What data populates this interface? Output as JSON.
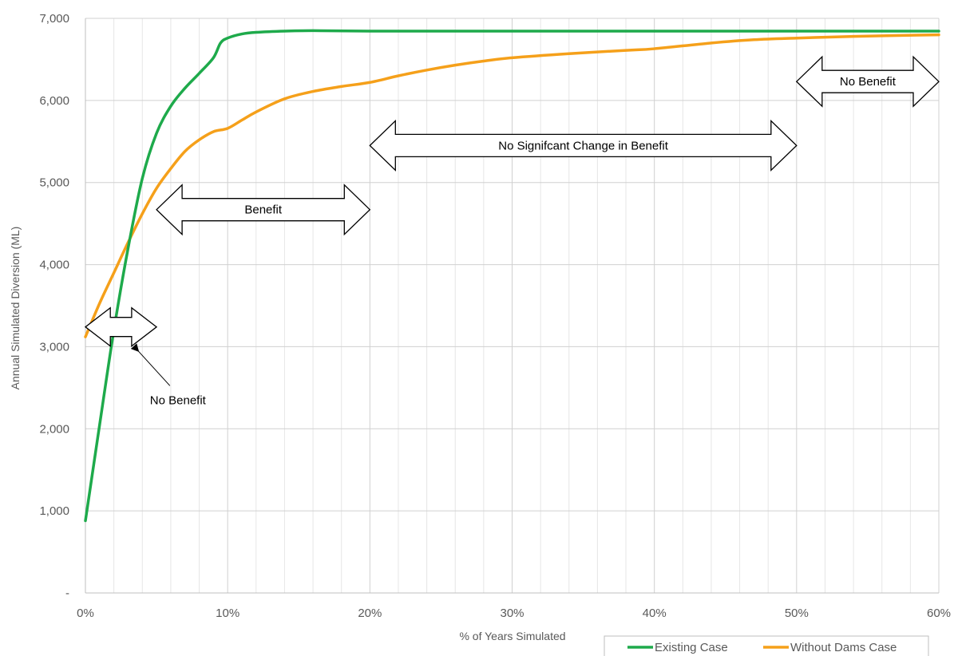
{
  "chart_data": {
    "type": "line",
    "title": "",
    "xlabel": "% of Years Simulated",
    "ylabel": "Annual Simulated Diversion (ML)",
    "xlim": [
      0,
      60
    ],
    "ylim": [
      0,
      7000
    ],
    "x_ticks": [
      0,
      10,
      20,
      30,
      40,
      50,
      60
    ],
    "x_tick_labels": [
      "0%",
      "10%",
      "20%",
      "30%",
      "40%",
      "50%",
      "60%"
    ],
    "y_ticks": [
      0,
      1000,
      2000,
      3000,
      4000,
      5000,
      6000,
      7000
    ],
    "y_tick_labels": [
      "-",
      "1,000",
      "2,000",
      "3,000",
      "4,000",
      "5,000",
      "6,000",
      "7,000"
    ],
    "grid": "major and minor",
    "legend_position": "bottom-right",
    "series": [
      {
        "name": "Existing Case",
        "color": "#1eaa4b",
        "points": [
          [
            0,
            880
          ],
          [
            1,
            2050
          ],
          [
            2,
            3200
          ],
          [
            3,
            4200
          ],
          [
            4,
            5050
          ],
          [
            5,
            5600
          ],
          [
            6,
            5930
          ],
          [
            7,
            6150
          ],
          [
            8,
            6330
          ],
          [
            9,
            6520
          ],
          [
            9.5,
            6700
          ],
          [
            10,
            6760
          ],
          [
            11,
            6810
          ],
          [
            12,
            6830
          ],
          [
            14,
            6845
          ],
          [
            16,
            6850
          ],
          [
            20,
            6845
          ],
          [
            30,
            6845
          ],
          [
            40,
            6845
          ],
          [
            50,
            6845
          ],
          [
            60,
            6845
          ]
        ]
      },
      {
        "name": "Without Dams Case",
        "color": "#f5a01a",
        "points": [
          [
            0,
            3120
          ],
          [
            1,
            3530
          ],
          [
            2,
            3900
          ],
          [
            3,
            4270
          ],
          [
            4,
            4620
          ],
          [
            5,
            4930
          ],
          [
            6,
            5170
          ],
          [
            7,
            5380
          ],
          [
            8,
            5520
          ],
          [
            9,
            5620
          ],
          [
            10,
            5660
          ],
          [
            11,
            5760
          ],
          [
            12,
            5860
          ],
          [
            14,
            6020
          ],
          [
            16,
            6110
          ],
          [
            18,
            6170
          ],
          [
            20,
            6220
          ],
          [
            22,
            6300
          ],
          [
            24,
            6370
          ],
          [
            26,
            6430
          ],
          [
            28,
            6480
          ],
          [
            30,
            6520
          ],
          [
            34,
            6570
          ],
          [
            38,
            6610
          ],
          [
            40,
            6630
          ],
          [
            44,
            6700
          ],
          [
            47,
            6740
          ],
          [
            50,
            6760
          ],
          [
            54,
            6780
          ],
          [
            60,
            6800
          ]
        ]
      }
    ],
    "annotations": [
      {
        "label": "No Benefit",
        "x_start": 0,
        "x_end": 5,
        "y": 3240,
        "show_label": false,
        "pointer_label": "No Benefit",
        "pointer_target": [
          3.7,
          2950
        ],
        "label_at": [
          6.5,
          2350
        ]
      },
      {
        "label": "Benefit",
        "x_start": 5,
        "x_end": 20,
        "y": 4670,
        "show_label": true
      },
      {
        "label": "No Signifcant Change in Benefit",
        "x_start": 20,
        "x_end": 50,
        "y": 5450,
        "show_label": true
      },
      {
        "label": "No Benefit",
        "x_start": 50,
        "x_end": 60,
        "y": 6230,
        "show_label": true
      }
    ]
  }
}
